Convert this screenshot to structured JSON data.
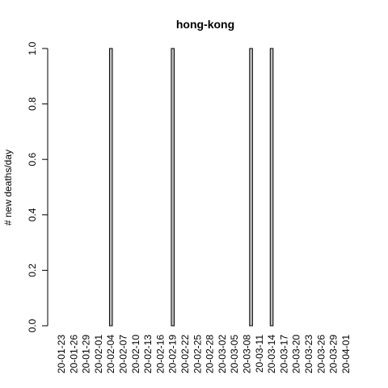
{
  "chart_data": {
    "type": "bar",
    "title": "hong-kong",
    "xlabel": "",
    "ylabel": "# new deaths/day",
    "ylim": [
      0,
      1
    ],
    "yticks": [
      0.0,
      0.2,
      0.4,
      0.6,
      0.8,
      1.0
    ],
    "ytick_labels": [
      "0.0",
      "0.2",
      "0.4",
      "0.6",
      "0.8",
      "1.0"
    ],
    "start_date": "2020-01-23",
    "num_days": 71,
    "x_tick_labels": [
      "20-01-23",
      "20-01-26",
      "20-01-29",
      "20-02-01",
      "20-02-04",
      "20-02-07",
      "20-02-10",
      "20-02-13",
      "20-02-16",
      "20-02-19",
      "20-02-22",
      "20-02-25",
      "20-02-28",
      "20-03-02",
      "20-03-05",
      "20-03-08",
      "20-03-11",
      "20-03-14",
      "20-03-17",
      "20-03-20",
      "20-03-23",
      "20-03-26",
      "20-03-29",
      "20-04-01"
    ],
    "nonzero_days": [
      {
        "date": "20-02-04",
        "value": 1
      },
      {
        "date": "20-02-19",
        "value": 1
      },
      {
        "date": "20-03-09",
        "value": 1
      },
      {
        "date": "20-03-14",
        "value": 1
      }
    ],
    "bar_fill": "#bebebe",
    "bar_stroke": "#000000"
  }
}
